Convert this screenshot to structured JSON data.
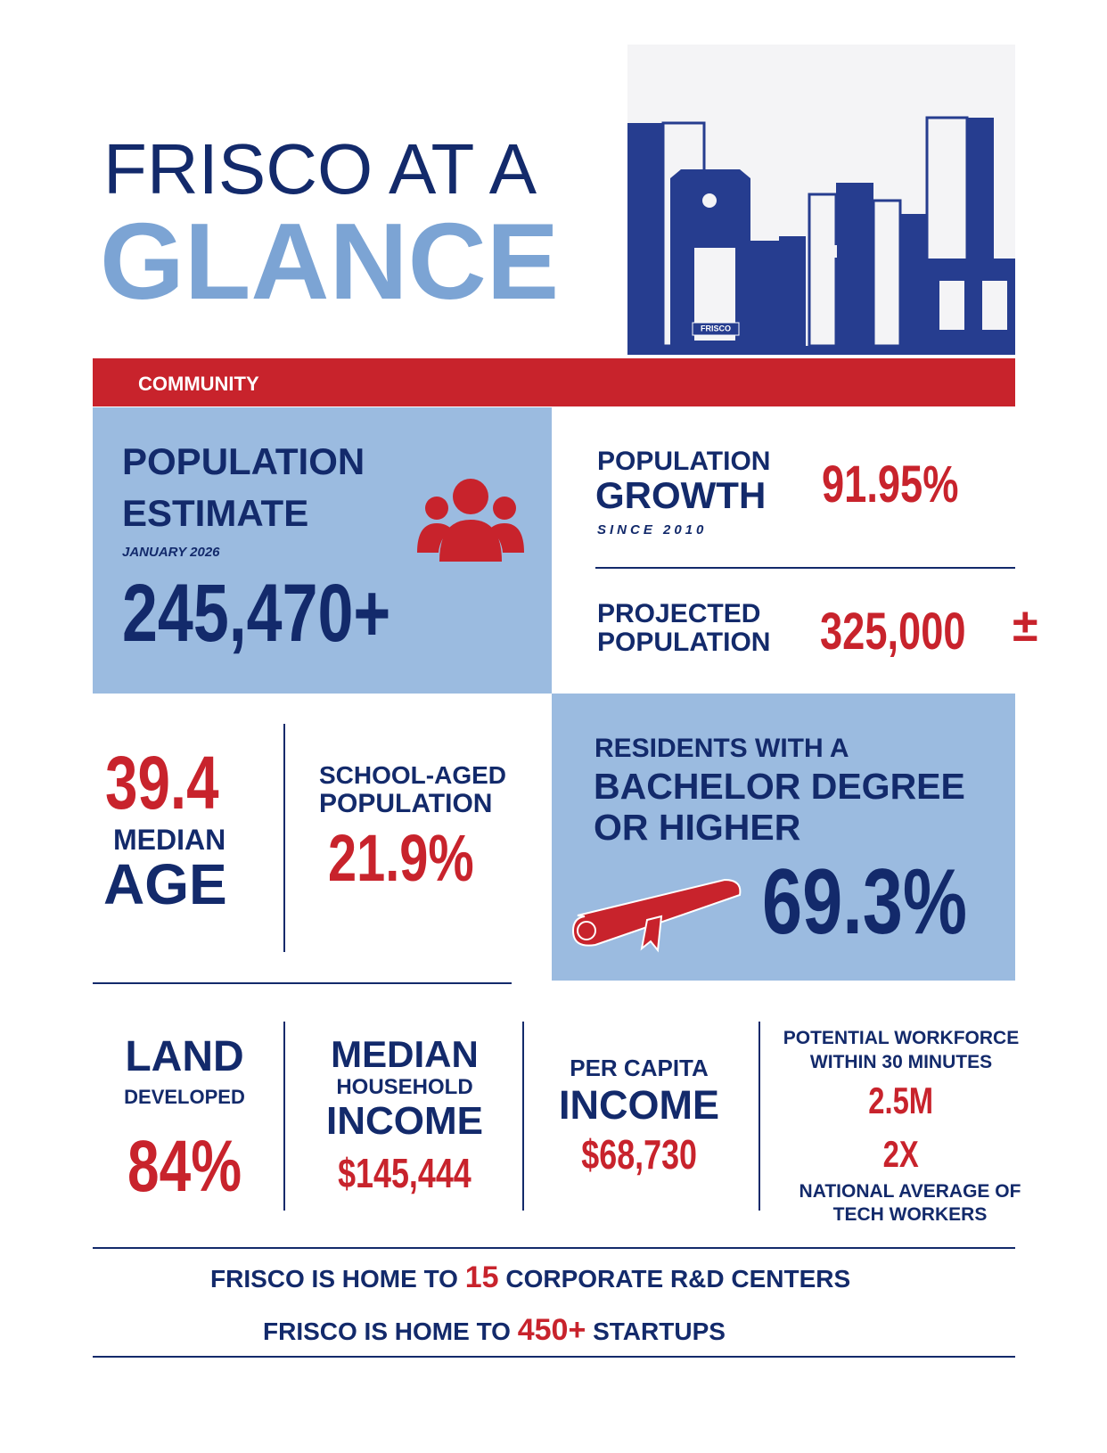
{
  "header": {
    "title_line1": "FRISCO AT A",
    "title_line2": "GLANCE",
    "sign": "FRISCO"
  },
  "section": "COMMUNITY",
  "population_estimate": {
    "label_line1": "POPULATION",
    "label_line2": "ESTIMATE",
    "date": "JANUARY 2026",
    "value": "245,470+"
  },
  "population_growth": {
    "label_line1": "POPULATION",
    "label_line2": "GROWTH",
    "note": "SINCE 2010",
    "value": "91.95%"
  },
  "projected_population": {
    "label_line1": "PROJECTED",
    "label_line2": "POPULATION",
    "value": "325,000",
    "sign": "±"
  },
  "median_age": {
    "value": "39.4",
    "label_line1": "MEDIAN",
    "label_line2": "AGE"
  },
  "school_aged": {
    "label_line1": "SCHOOL-AGED",
    "label_line2": "POPULATION",
    "value": "21.9%"
  },
  "bachelor": {
    "label_line1": "RESIDENTS WITH A",
    "label_line2": "BACHELOR DEGREE",
    "label_line3": "OR HIGHER",
    "value": "69.3%"
  },
  "land": {
    "label_line1": "LAND",
    "label_line2": "DEVELOPED",
    "value": "84%"
  },
  "household_income": {
    "label_line1": "MEDIAN",
    "label_line2": "HOUSEHOLD",
    "label_line3": "INCOME",
    "value": "$145,444"
  },
  "per_capita": {
    "label_line1": "PER CAPITA",
    "label_line2": "INCOME",
    "value": "$68,730"
  },
  "workforce": {
    "label_line1": "POTENTIAL WORKFORCE",
    "label_line2": "WITHIN 30 MINUTES",
    "value": "2.5M",
    "multiplier": "2X",
    "note_line1": "NATIONAL AVERAGE OF",
    "note_line2": "TECH WORKERS"
  },
  "footer": [
    {
      "prefix": "FRISCO IS HOME TO",
      "value": "15",
      "suffix": "CORPORATE R&D CENTERS"
    },
    {
      "prefix": "FRISCO IS HOME TO",
      "value": "450+",
      "suffix": "STARTUPS"
    }
  ]
}
